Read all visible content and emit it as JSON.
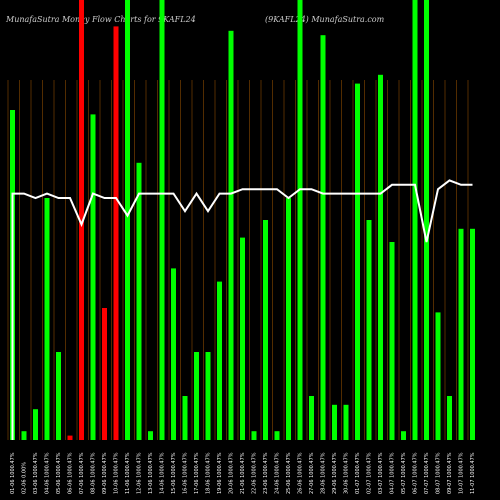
{
  "header": {
    "left": "MunafaSutra  Money  Flow  Charts for 9KAFL24",
    "right": "(9KAFL24)  MunafaSutra.com"
  },
  "colors": {
    "background": "#000000",
    "up": "#00ff00",
    "down": "#ff0000",
    "grid": "#8a4a00",
    "line": "#ffffff",
    "label": "#ffffff"
  },
  "chart_data": {
    "type": "bar",
    "title": "MunafaSutra  Money  Flow  Charts for 9KAFL24",
    "ylim": [
      0,
      100
    ],
    "categories": [
      "01-06 1000.47%",
      "02-06 0.00%",
      "03-06 1000.47%",
      "04-06 1000.47%",
      "05-06 1000.47%",
      "06-06 1000.47%",
      "07-06 1000.47%",
      "08-06 1000.47%",
      "09-06 1000.47%",
      "10-06 1000.47%",
      "11-06 1000.47%",
      "12-06 1000.47%",
      "13-06 1000.47%",
      "14-06 1000.47%",
      "15-06 1000.47%",
      "16-06 1000.47%",
      "17-06 1000.47%",
      "18-06 1000.47%",
      "19-06 1000.47%",
      "20-06 1000.47%",
      "21-06 1000.47%",
      "22-06 1000.47%",
      "23-06 1000.47%",
      "24-06 1000.47%",
      "25-06 1000.47%",
      "26-06 1000.47%",
      "27-06 1000.47%",
      "28-06 1000.47%",
      "29-06 1000.47%",
      "30-06 1000.47%",
      "01-07 1000.47%",
      "02-07 1000.47%",
      "03-07 1000.47%",
      "04-07 1000.47%",
      "05-07 1000.47%",
      "06-07 1000.47%",
      "07-07 1000.47%",
      "08-07 1000.47%",
      "09-07 1000.47%",
      "10-07 1000.47%",
      "11-07 1000.47%"
    ],
    "series": [
      {
        "values": [
          75,
          2,
          7,
          55,
          20,
          1,
          100,
          74,
          30,
          94,
          100,
          63,
          2,
          100,
          39,
          10,
          20,
          20,
          36,
          93,
          46,
          2,
          50,
          2,
          55,
          100,
          10,
          92,
          8,
          8,
          81,
          50,
          83,
          45,
          2,
          100,
          100,
          29,
          10,
          48,
          48
        ],
        "colors": [
          "up",
          "up",
          "up",
          "up",
          "up",
          "down",
          "down",
          "up",
          "down",
          "down",
          "up",
          "up",
          "up",
          "up",
          "up",
          "up",
          "up",
          "up",
          "up",
          "up",
          "up",
          "up",
          "up",
          "up",
          "up",
          "up",
          "up",
          "up",
          "up",
          "up",
          "up",
          "up",
          "up",
          "up",
          "up",
          "up",
          "up",
          "up",
          "up",
          "up",
          "up"
        ]
      },
      {
        "values": [
          56,
          56,
          55,
          56,
          55,
          55,
          49,
          56,
          55,
          55,
          51,
          56,
          56,
          56,
          56,
          52,
          56,
          52,
          56,
          56,
          57,
          57,
          57,
          57,
          55,
          57,
          57,
          56,
          56,
          56,
          56,
          56,
          56,
          58,
          58,
          58,
          45,
          57,
          59,
          58,
          58
        ]
      }
    ]
  }
}
